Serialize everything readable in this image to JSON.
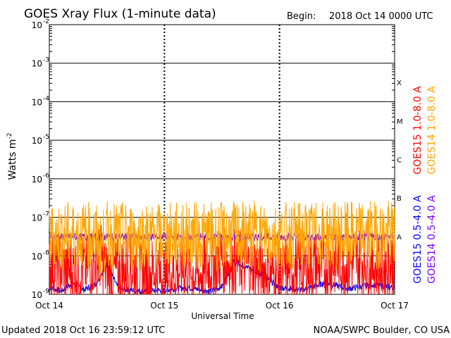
{
  "header": {
    "title": "GOES Xray Flux (1-minute data)",
    "begin_label": "Begin:",
    "begin_value": "2018 Oct 14 0000 UTC"
  },
  "footer": {
    "updated": "Updated 2018 Oct 16 23:59:12 UTC",
    "credit": "NOAA/SWPC Boulder, CO USA"
  },
  "chart_data": {
    "type": "line",
    "title": "GOES Xray Flux (1-minute data)",
    "xlabel": "Universal Time",
    "ylabel": "Watts m",
    "ylabel_superscript": "-2",
    "y_scale": "log",
    "ylim": [
      1e-09,
      0.01
    ],
    "y_ticks": [
      {
        "base": "10",
        "exp": "-2"
      },
      {
        "base": "10",
        "exp": "-3"
      },
      {
        "base": "10",
        "exp": "-4"
      },
      {
        "base": "10",
        "exp": "-5"
      },
      {
        "base": "10",
        "exp": "-6"
      },
      {
        "base": "10",
        "exp": "-7"
      },
      {
        "base": "10",
        "exp": "-8"
      },
      {
        "base": "10",
        "exp": "-9"
      }
    ],
    "x_ticks": [
      "Oct 14",
      "Oct 15",
      "Oct 16",
      "Oct 17"
    ],
    "xlim_days": [
      0,
      3
    ],
    "flare_classes": [
      "X",
      "M",
      "C",
      "B",
      "A"
    ],
    "grid": true,
    "legend_placement": "right",
    "series": [
      {
        "name": "GOES15 1.0-8.0 A",
        "color": "#ff0000",
        "x_day": [
          0,
          0.1,
          0.2,
          0.3,
          0.4,
          0.45,
          0.5,
          0.6,
          0.7,
          0.8,
          0.9,
          1.0,
          1.1,
          1.2,
          1.3,
          1.4,
          1.5,
          1.6,
          1.7,
          1.8,
          1.9,
          2.0,
          2.1,
          2.2,
          2.3,
          2.4,
          2.5,
          2.6,
          2.7,
          2.8,
          2.9,
          3.0
        ],
        "y": [
          6e-09,
          5e-09,
          4e-09,
          5e-09,
          7e-09,
          9e-09,
          3e-09,
          4e-09,
          5e-09,
          3e-09,
          4e-09,
          3e-09,
          4e-09,
          5e-09,
          3e-09,
          6e-09,
          8e-09,
          7e-09,
          6e-09,
          5e-09,
          4e-09,
          3e-09,
          5e-09,
          4e-09,
          6e-09,
          5e-09,
          7e-09,
          6e-09,
          8e-09,
          6e-09,
          5e-09,
          7e-09
        ]
      },
      {
        "name": "GOES14 1.0-8.0 A",
        "color": "#ffa500",
        "x_day": [
          0,
          0.2,
          0.4,
          0.44,
          0.5,
          0.8,
          1.0,
          1.2,
          1.4,
          1.5,
          1.6,
          2.0,
          2.4,
          2.6,
          2.8,
          3.0
        ],
        "y": [
          3.2e-08,
          3.4e-08,
          3.3e-08,
          1.6e-08,
          3.3e-08,
          3.1e-08,
          3.2e-08,
          3.3e-08,
          3.1e-08,
          3.2e-08,
          3.4e-08,
          3.3e-08,
          3.4e-08,
          3.2e-08,
          3.5e-08,
          3.4e-08
        ]
      },
      {
        "name": "GOES15 0.5-4.0 A",
        "color": "#0000ff",
        "x_day": [
          0,
          0.1,
          0.2,
          0.3,
          0.4,
          0.5,
          0.6,
          0.8,
          1.0,
          1.2,
          1.4,
          1.5,
          1.6,
          1.8,
          2.0,
          2.2,
          2.4,
          2.6,
          2.8,
          3.0
        ],
        "y": [
          1.5e-09,
          1.2e-09,
          2e-09,
          1.3e-09,
          1.8e-09,
          6e-09,
          1.4e-09,
          1.2e-09,
          1.3e-09,
          1.5e-09,
          1.2e-09,
          1.6e-09,
          7e-09,
          4e-09,
          1.5e-09,
          1.3e-09,
          2e-09,
          1.4e-09,
          1.8e-09,
          1.5e-09
        ]
      },
      {
        "name": "GOES14 0.5-4.0 A",
        "color": "#7a00ff",
        "x_day": [
          0,
          0.5,
          1.0,
          1.5,
          2.0,
          2.5,
          3.0
        ],
        "y": [
          3.1e-08,
          3.1e-08,
          3.1e-08,
          3.1e-08,
          3.1e-08,
          3.1e-08,
          3.1e-08
        ]
      }
    ]
  }
}
